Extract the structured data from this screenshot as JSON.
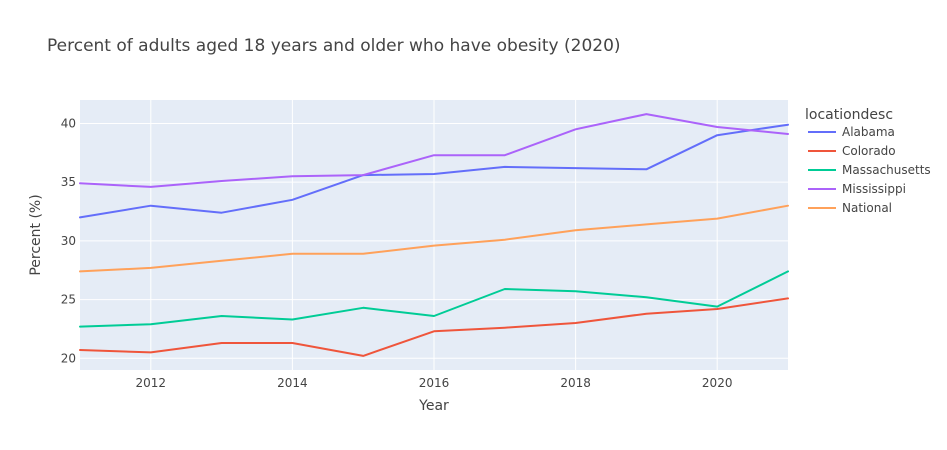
{
  "chart_data": {
    "type": "line",
    "title": "Percent of adults aged 18 years and older who have obesity (2020)",
    "xlabel": "Year",
    "ylabel": "Percent (%)",
    "xlim": [
      2011,
      2021
    ],
    "ylim": [
      19,
      42
    ],
    "x_ticks": [
      2012,
      2014,
      2016,
      2018,
      2020
    ],
    "y_ticks": [
      20,
      25,
      30,
      35,
      40
    ],
    "grid": true,
    "legend": {
      "title": "locationdesc",
      "placement": "right"
    },
    "x": [
      2011,
      2012,
      2013,
      2014,
      2015,
      2016,
      2017,
      2018,
      2019,
      2020,
      2021
    ],
    "series": [
      {
        "name": "Alabama",
        "color": "#636efa",
        "values": [
          32.0,
          33.0,
          32.4,
          33.5,
          35.6,
          35.7,
          36.3,
          36.2,
          36.1,
          39.0,
          39.9
        ]
      },
      {
        "name": "Colorado",
        "color": "#EF553B",
        "values": [
          20.7,
          20.5,
          21.3,
          21.3,
          20.2,
          22.3,
          22.6,
          23.0,
          23.8,
          24.2,
          25.1
        ]
      },
      {
        "name": "Massachusetts",
        "color": "#00cc96",
        "values": [
          22.7,
          22.9,
          23.6,
          23.3,
          24.3,
          23.6,
          25.9,
          25.7,
          25.2,
          24.4,
          27.4
        ]
      },
      {
        "name": "Mississippi",
        "color": "#ab63fa",
        "values": [
          34.9,
          34.6,
          35.1,
          35.5,
          35.6,
          37.3,
          37.3,
          39.5,
          40.8,
          39.7,
          39.1
        ]
      },
      {
        "name": "National",
        "color": "#FFA15A",
        "values": [
          27.4,
          27.7,
          28.3,
          28.9,
          28.9,
          29.6,
          30.1,
          30.9,
          31.4,
          31.9,
          33.0
        ]
      }
    ]
  }
}
